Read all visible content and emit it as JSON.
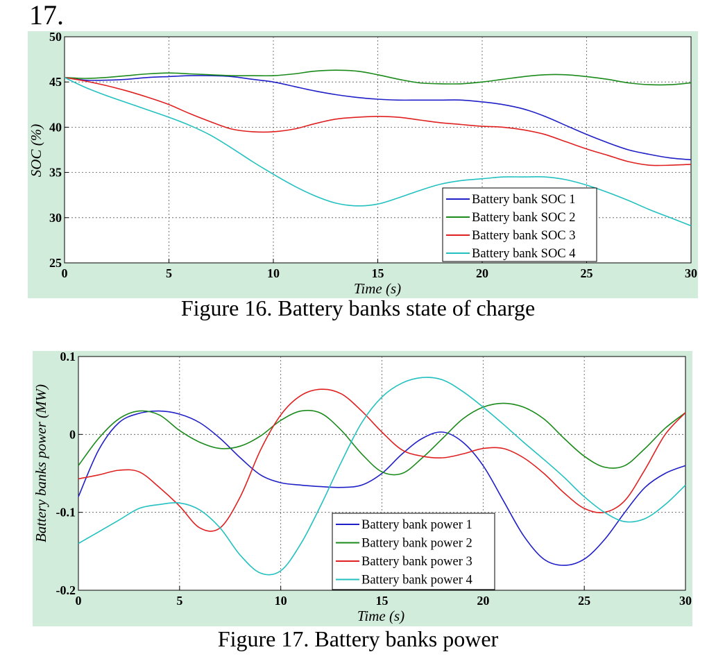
{
  "page_number": "17.",
  "figures": [
    {
      "caption": "Figure 16. Battery banks state of charge"
    },
    {
      "caption": "Figure 17. Battery banks power"
    }
  ],
  "colors": {
    "panel_bg": "#d2ecdc",
    "series": [
      "#1f1fc7",
      "#1a8a1a",
      "#e02020",
      "#22c0c0"
    ]
  },
  "chart_data": [
    {
      "type": "line",
      "title": "",
      "xlabel": "Time (s)",
      "ylabel": "SOC (%)",
      "xlim": [
        0,
        30
      ],
      "ylim": [
        25,
        50
      ],
      "xticks": [
        "0",
        "5",
        "10",
        "15",
        "20",
        "25",
        "30"
      ],
      "yticks": [
        "25",
        "30",
        "35",
        "40",
        "45",
        "50"
      ],
      "grid": true,
      "legend_position": "bottom-right",
      "x": [
        0,
        1,
        2,
        3,
        4,
        5,
        6,
        7,
        8,
        9,
        10,
        11,
        12,
        13,
        14,
        15,
        16,
        17,
        18,
        19,
        20,
        21,
        22,
        23,
        24,
        25,
        26,
        27,
        28,
        29,
        30
      ],
      "series": [
        {
          "name": "Battery bank SOC 1",
          "values": [
            45.5,
            45.2,
            45.2,
            45.3,
            45.5,
            45.6,
            45.7,
            45.7,
            45.6,
            45.3,
            45.0,
            44.5,
            44.0,
            43.6,
            43.3,
            43.1,
            43.0,
            43.0,
            43.0,
            43.0,
            42.8,
            42.5,
            42.0,
            41.2,
            40.2,
            39.2,
            38.3,
            37.5,
            37.0,
            36.6,
            36.4
          ]
        },
        {
          "name": "Battery bank SOC 2",
          "values": [
            45.5,
            45.4,
            45.5,
            45.7,
            45.9,
            46.0,
            45.9,
            45.8,
            45.7,
            45.7,
            45.7,
            45.9,
            46.2,
            46.3,
            46.2,
            45.8,
            45.3,
            44.9,
            44.8,
            44.8,
            45.0,
            45.3,
            45.6,
            45.8,
            45.8,
            45.6,
            45.3,
            44.9,
            44.7,
            44.7,
            44.9
          ]
        },
        {
          "name": "Battery bank SOC 3",
          "values": [
            45.5,
            45.1,
            44.6,
            44.0,
            43.3,
            42.5,
            41.5,
            40.6,
            39.8,
            39.5,
            39.5,
            39.8,
            40.4,
            40.9,
            41.1,
            41.2,
            41.1,
            40.8,
            40.5,
            40.3,
            40.1,
            40.0,
            39.7,
            39.2,
            38.4,
            37.6,
            36.9,
            36.2,
            35.8,
            35.8,
            35.9
          ]
        },
        {
          "name": "Battery bank SOC 4",
          "values": [
            45.5,
            44.4,
            43.5,
            42.7,
            41.9,
            41.1,
            40.2,
            39.1,
            37.7,
            36.2,
            34.8,
            33.5,
            32.4,
            31.6,
            31.3,
            31.5,
            32.2,
            33.0,
            33.7,
            34.1,
            34.3,
            34.5,
            34.5,
            34.5,
            34.2,
            33.6,
            32.8,
            31.9,
            30.9,
            30.0,
            29.1
          ]
        }
      ]
    },
    {
      "type": "line",
      "title": "",
      "xlabel": "Time (s)",
      "ylabel": "Battery banks power (MW)",
      "xlim": [
        0,
        30
      ],
      "ylim": [
        -0.2,
        0.1
      ],
      "xticks": [
        "0",
        "5",
        "10",
        "15",
        "20",
        "25",
        "30"
      ],
      "yticks": [
        "-0.2",
        "-0.1",
        "0",
        "0.1"
      ],
      "grid": true,
      "legend_position": "bottom-center",
      "x": [
        0,
        1,
        2,
        3,
        4,
        5,
        6,
        7,
        8,
        9,
        10,
        11,
        12,
        13,
        14,
        15,
        16,
        17,
        18,
        19,
        20,
        21,
        22,
        23,
        24,
        25,
        26,
        27,
        28,
        29,
        30
      ],
      "series": [
        {
          "name": "Battery bank power 1",
          "values": [
            -0.08,
            -0.02,
            0.015,
            0.027,
            0.03,
            0.026,
            0.015,
            -0.005,
            -0.03,
            -0.052,
            -0.062,
            -0.065,
            -0.067,
            -0.068,
            -0.065,
            -0.05,
            -0.025,
            -0.005,
            0.003,
            -0.01,
            -0.04,
            -0.085,
            -0.13,
            -0.16,
            -0.168,
            -0.16,
            -0.135,
            -0.1,
            -0.068,
            -0.05,
            -0.04
          ]
        },
        {
          "name": "Battery bank power 2",
          "values": [
            -0.04,
            -0.005,
            0.02,
            0.03,
            0.025,
            0.005,
            -0.01,
            -0.018,
            -0.015,
            -0.002,
            0.018,
            0.03,
            0.027,
            0.005,
            -0.025,
            -0.048,
            -0.05,
            -0.03,
            -0.005,
            0.02,
            0.035,
            0.04,
            0.035,
            0.02,
            -0.005,
            -0.028,
            -0.042,
            -0.04,
            -0.018,
            0.008,
            0.028
          ]
        },
        {
          "name": "Battery bank power 3",
          "values": [
            -0.057,
            -0.052,
            -0.046,
            -0.048,
            -0.068,
            -0.092,
            -0.12,
            -0.12,
            -0.08,
            -0.02,
            0.025,
            0.05,
            0.058,
            0.052,
            0.03,
            0.003,
            -0.02,
            -0.028,
            -0.03,
            -0.025,
            -0.018,
            -0.018,
            -0.03,
            -0.05,
            -0.075,
            -0.095,
            -0.1,
            -0.085,
            -0.045,
            0.0,
            0.028
          ]
        },
        {
          "name": "Battery bank power 4",
          "values": [
            -0.14,
            -0.125,
            -0.11,
            -0.095,
            -0.09,
            -0.088,
            -0.097,
            -0.12,
            -0.155,
            -0.178,
            -0.175,
            -0.14,
            -0.09,
            -0.035,
            0.015,
            0.048,
            0.066,
            0.073,
            0.07,
            0.055,
            0.035,
            0.013,
            -0.01,
            -0.032,
            -0.055,
            -0.08,
            -0.1,
            -0.112,
            -0.108,
            -0.09,
            -0.065
          ]
        }
      ]
    }
  ]
}
